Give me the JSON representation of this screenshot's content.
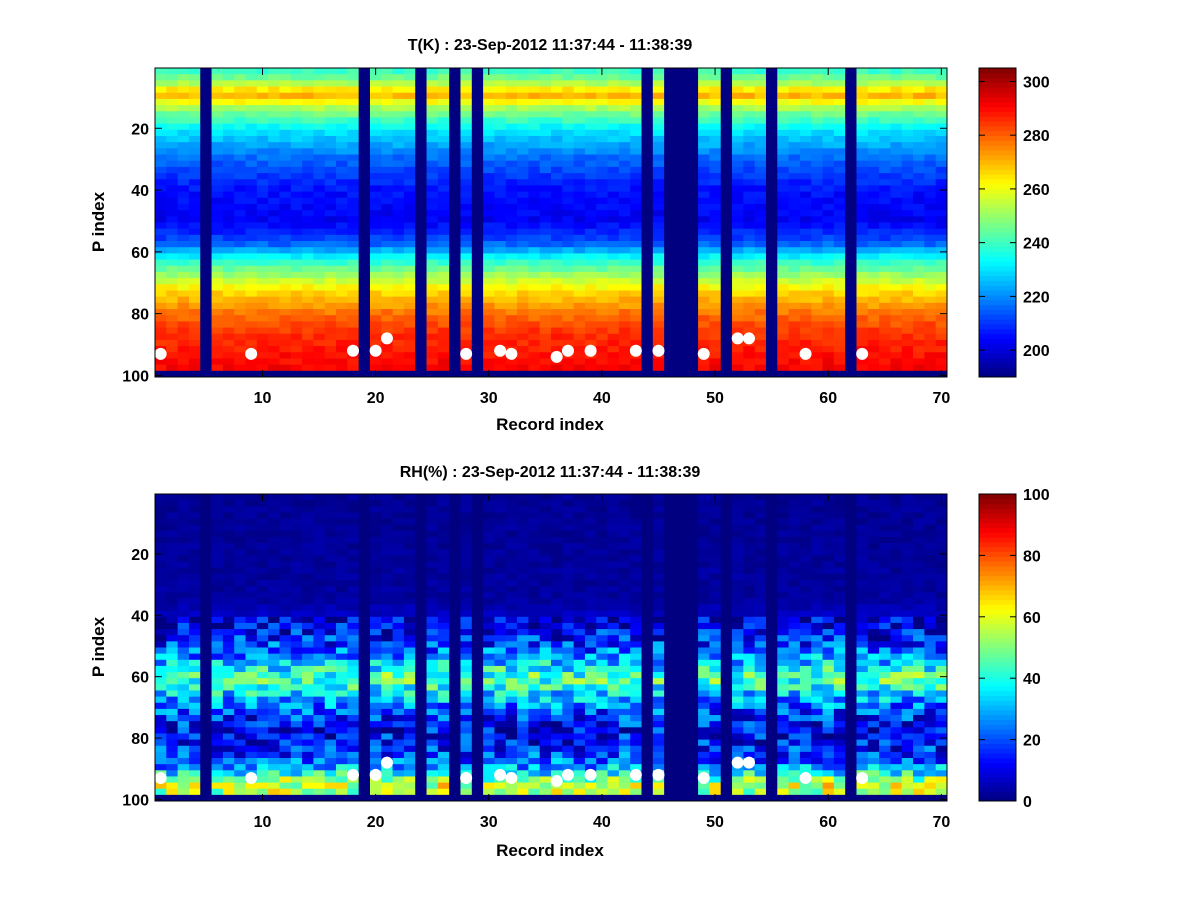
{
  "chart_data": [
    {
      "type": "heatmap",
      "title": "T(K) : 23-Sep-2012 11:37:44 - 11:38:39",
      "xlabel": "Record index",
      "ylabel": "P index",
      "xlim": [
        0.5,
        70.5
      ],
      "ylim": [
        100.5,
        0.5
      ],
      "y_direction": "reverse",
      "xticks": [
        10,
        20,
        30,
        40,
        50,
        60,
        70
      ],
      "yticks": [
        20,
        40,
        60,
        80,
        100
      ],
      "colormap": "jet",
      "clim": [
        190,
        305
      ],
      "colorbar_ticks": [
        200,
        220,
        240,
        260,
        280,
        300
      ],
      "profile_levels": [
        [
          1,
          238
        ],
        [
          5,
          250
        ],
        [
          9,
          272
        ],
        [
          14,
          250
        ],
        [
          20,
          232
        ],
        [
          30,
          216
        ],
        [
          40,
          206
        ],
        [
          50,
          203
        ],
        [
          57,
          214
        ],
        [
          63,
          238
        ],
        [
          68,
          252
        ],
        [
          73,
          266
        ],
        [
          80,
          278
        ],
        [
          86,
          285
        ],
        [
          92,
          288
        ],
        [
          97,
          291
        ]
      ],
      "missing_records": [
        5,
        19,
        24,
        27,
        29,
        44,
        46,
        47,
        48,
        51,
        55,
        62
      ],
      "missing_p_index": [
        98,
        100
      ],
      "markers": [
        [
          1,
          93
        ],
        [
          9,
          93
        ],
        [
          18,
          92
        ],
        [
          20,
          92
        ],
        [
          21,
          88
        ],
        [
          28,
          93
        ],
        [
          31,
          92
        ],
        [
          32,
          93
        ],
        [
          36,
          94
        ],
        [
          37,
          92
        ],
        [
          39,
          92
        ],
        [
          43,
          92
        ],
        [
          45,
          92
        ],
        [
          49,
          93
        ],
        [
          52,
          88
        ],
        [
          53,
          88
        ],
        [
          58,
          93
        ],
        [
          63,
          93
        ]
      ],
      "grid": false
    },
    {
      "type": "heatmap",
      "title": "RH(%) : 23-Sep-2012 11:37:44 - 11:38:39",
      "xlabel": "Record index",
      "ylabel": "P index",
      "xlim": [
        0.5,
        70.5
      ],
      "ylim": [
        100.5,
        0.5
      ],
      "y_direction": "reverse",
      "xticks": [
        10,
        20,
        30,
        40,
        50,
        60,
        70
      ],
      "yticks": [
        20,
        40,
        60,
        80,
        100
      ],
      "colormap": "jet",
      "clim": [
        0,
        100
      ],
      "colorbar_ticks": [
        0,
        20,
        40,
        60,
        80,
        100
      ],
      "profile_levels": [
        [
          1,
          2
        ],
        [
          35,
          3
        ],
        [
          42,
          8
        ],
        [
          48,
          15
        ],
        [
          53,
          25
        ],
        [
          57,
          38
        ],
        [
          60,
          45
        ],
        [
          63,
          42
        ],
        [
          67,
          30
        ],
        [
          72,
          18
        ],
        [
          78,
          12
        ],
        [
          83,
          15
        ],
        [
          88,
          22
        ],
        [
          92,
          40
        ],
        [
          95,
          60
        ],
        [
          97,
          55
        ]
      ],
      "missing_records": [
        5,
        19,
        24,
        27,
        29,
        44,
        46,
        47,
        48,
        51,
        55,
        62
      ],
      "missing_p_index": [
        98,
        100
      ],
      "markers": [
        [
          1,
          93
        ],
        [
          9,
          93
        ],
        [
          18,
          92
        ],
        [
          20,
          92
        ],
        [
          21,
          88
        ],
        [
          28,
          93
        ],
        [
          31,
          92
        ],
        [
          32,
          93
        ],
        [
          36,
          94
        ],
        [
          37,
          92
        ],
        [
          39,
          92
        ],
        [
          43,
          92
        ],
        [
          45,
          92
        ],
        [
          49,
          93
        ],
        [
          52,
          88
        ],
        [
          53,
          88
        ],
        [
          58,
          93
        ],
        [
          63,
          93
        ]
      ],
      "grid": false
    }
  ]
}
